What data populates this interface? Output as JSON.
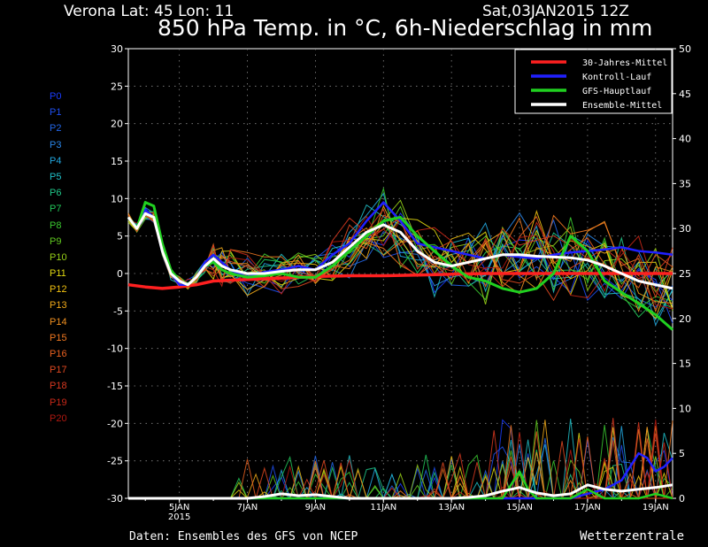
{
  "header": {
    "location": "Verona   Lat: 45 Lon: 11",
    "run": "Sat,03JAN2015 12Z",
    "title": "850 hPa Temp. in °C, 6h-Niederschlag in mm"
  },
  "footer": {
    "credit": "Daten: Ensembles des GFS von NCEP",
    "brand": "Wetterzentrale"
  },
  "members": [
    {
      "name": "P0",
      "color": "#1a3cff"
    },
    {
      "name": "P1",
      "color": "#1f4ff0"
    },
    {
      "name": "P2",
      "color": "#2266e8"
    },
    {
      "name": "P3",
      "color": "#2a86e8"
    },
    {
      "name": "P4",
      "color": "#22a8e0"
    },
    {
      "name": "P5",
      "color": "#20c0c8"
    },
    {
      "name": "P6",
      "color": "#20c88a"
    },
    {
      "name": "P7",
      "color": "#22c85a"
    },
    {
      "name": "P8",
      "color": "#3ac830"
    },
    {
      "name": "P9",
      "color": "#60c820"
    },
    {
      "name": "P10",
      "color": "#98d018"
    },
    {
      "name": "P11",
      "color": "#e0d810"
    },
    {
      "name": "P12",
      "color": "#f0c010"
    },
    {
      "name": "P13",
      "color": "#f0a818"
    },
    {
      "name": "P14",
      "color": "#f09020"
    },
    {
      "name": "P15",
      "color": "#f07820"
    },
    {
      "name": "P16",
      "color": "#e86020"
    },
    {
      "name": "P17",
      "color": "#e04820"
    },
    {
      "name": "P18",
      "color": "#d83820"
    },
    {
      "name": "P19",
      "color": "#c82818"
    },
    {
      "name": "P20",
      "color": "#b01810"
    }
  ],
  "chart_data": {
    "type": "line",
    "title": "850 hPa Temp. in °C, 6h-Niederschlag in mm",
    "x_unit": "date",
    "x_range": [
      "2015-01-03 12Z",
      "2015-01-19 12Z"
    ],
    "x_ticks": [
      {
        "label": "5JAN",
        "sublabel": "2015",
        "day": 5
      },
      {
        "label": "7JAN",
        "day": 7
      },
      {
        "label": "9JAN",
        "day": 9
      },
      {
        "label": "11JAN",
        "day": 11
      },
      {
        "label": "13JAN",
        "day": 13
      },
      {
        "label": "15JAN",
        "day": 15
      },
      {
        "label": "17JAN",
        "day": 17
      },
      {
        "label": "19JAN",
        "day": 19
      }
    ],
    "y_left": {
      "label": "850 hPa Temp. (°C)",
      "range": [
        -30,
        30
      ],
      "ticks": [
        -30,
        -25,
        -20,
        -15,
        -10,
        -5,
        0,
        5,
        10,
        15,
        20,
        25,
        30
      ]
    },
    "y_right": {
      "label": "6h-Niederschlag (mm)",
      "range": [
        0,
        50
      ],
      "ticks": [
        0,
        5,
        10,
        15,
        20,
        25,
        30,
        35,
        40,
        45,
        50
      ]
    },
    "grid": true,
    "legend_position": "top-right",
    "legend": [
      {
        "label": "30-Jahres-Mittel",
        "color": "#ff2020"
      },
      {
        "label": "Kontroll-Lauf",
        "color": "#2020ff"
      },
      {
        "label": "GFS-Hauptlauf",
        "color": "#20d020"
      },
      {
        "label": "Ensemble-Mittel",
        "color": "#ffffff"
      }
    ],
    "temperature_series": [
      {
        "name": "30-Jahres-Mittel",
        "color": "#ff2020",
        "width": 3.5,
        "x": [
          3.5,
          4,
          4.5,
          5,
          5.5,
          6,
          7,
          8,
          9,
          10,
          11,
          12,
          13,
          14,
          15,
          16,
          17,
          18,
          19,
          19.5
        ],
        "y": [
          -1.5,
          -1.8,
          -2.0,
          -1.8,
          -1.5,
          -1.0,
          -0.8,
          -0.6,
          -0.4,
          -0.3,
          -0.3,
          -0.2,
          -0.1,
          0.0,
          0.0,
          0.0,
          0.0,
          0.0,
          0.0,
          0.0
        ]
      },
      {
        "name": "Kontroll-Lauf",
        "color": "#2020ff",
        "width": 2.5,
        "x": [
          3.5,
          3.75,
          4,
          4.25,
          4.5,
          4.75,
          5,
          5.25,
          5.5,
          5.75,
          6,
          6.25,
          6.5,
          7,
          7.5,
          8,
          8.5,
          9,
          9.5,
          10,
          10.5,
          11,
          11.5,
          12,
          12.5,
          13,
          13.5,
          14,
          14.5,
          15,
          15.5,
          16,
          16.5,
          17,
          17.5,
          18,
          18.5,
          19,
          19.5
        ],
        "y": [
          7.5,
          6,
          8.5,
          7.5,
          3,
          0,
          -1.5,
          -1.5,
          -0.5,
          1.5,
          2.5,
          1.5,
          0.5,
          -0.5,
          0.2,
          0.5,
          1,
          0.5,
          2.5,
          4,
          7,
          9.5,
          7,
          4,
          3.5,
          3,
          2.5,
          2,
          2.5,
          2.2,
          2,
          2.5,
          2.8,
          3,
          3.2,
          3.5,
          3,
          2.8,
          2.5
        ]
      },
      {
        "name": "GFS-Hauptlauf",
        "color": "#20d020",
        "width": 3,
        "x": [
          3.5,
          3.75,
          4,
          4.25,
          4.5,
          4.75,
          5,
          5.25,
          5.5,
          5.75,
          6,
          6.25,
          6.5,
          7,
          7.5,
          8,
          8.5,
          9,
          9.5,
          10,
          10.5,
          11,
          11.5,
          12,
          12.5,
          13,
          13.5,
          14,
          14.5,
          15,
          15.5,
          16,
          16.5,
          17,
          17.5,
          18,
          18.5,
          19,
          19.5
        ],
        "y": [
          7.5,
          6,
          9.5,
          9,
          4,
          0.5,
          -1,
          -1.5,
          -0.5,
          1,
          1.5,
          0.5,
          0,
          -0.5,
          -0.3,
          0,
          -0.5,
          -0.5,
          1,
          3,
          5,
          7,
          7.5,
          5,
          3,
          1,
          -0.5,
          -1,
          -2,
          -2.5,
          -2,
          0,
          5,
          3,
          -1,
          -2.5,
          -4,
          -5.5,
          -7.5
        ]
      },
      {
        "name": "Ensemble-Mittel",
        "color": "#ffffff",
        "width": 3,
        "x": [
          3.5,
          3.75,
          4,
          4.25,
          4.5,
          4.75,
          5,
          5.25,
          5.5,
          5.75,
          6,
          6.25,
          6.5,
          7,
          7.5,
          8,
          8.5,
          9,
          9.5,
          10,
          10.5,
          11,
          11.5,
          12,
          12.5,
          13,
          13.5,
          14,
          14.5,
          15,
          15.5,
          16,
          16.5,
          17,
          17.5,
          18,
          18.5,
          19,
          19.5
        ],
        "y": [
          7.5,
          6,
          8,
          7.5,
          3,
          0,
          -1,
          -1.5,
          -0.5,
          1,
          2,
          1,
          0.5,
          0,
          0,
          0.3,
          0.5,
          0.5,
          1.5,
          3.5,
          5.5,
          6.5,
          5.5,
          3,
          1.5,
          1,
          1.5,
          2,
          2.5,
          2.5,
          2.3,
          2.2,
          2.1,
          1.8,
          1,
          0,
          -1,
          -1.5,
          -2
        ]
      }
    ],
    "precipitation_series": [
      {
        "name": "Kontroll-Lauf",
        "color": "#2020ff",
        "width": 2.5,
        "x": [
          3.5,
          7,
          8,
          9,
          10,
          11,
          12,
          13,
          14,
          15,
          16,
          16.5,
          17,
          17.5,
          18,
          18.25,
          18.5,
          18.75,
          19,
          19.25,
          19.5
        ],
        "y": [
          0,
          0,
          0,
          0,
          0,
          0,
          0,
          0,
          0,
          0,
          0,
          0,
          0.5,
          1,
          2,
          3.5,
          5,
          4.5,
          3,
          3.5,
          4.5
        ]
      },
      {
        "name": "GFS-Hauptlauf",
        "color": "#20d020",
        "width": 2.5,
        "x": [
          3.5,
          7,
          8,
          9,
          10,
          11,
          12,
          13,
          14,
          14.5,
          15,
          15.25,
          15.5,
          16,
          16.5,
          17,
          17.5,
          18,
          18.5,
          19,
          19.5
        ],
        "y": [
          0,
          0,
          0,
          0,
          0,
          0,
          0,
          0,
          0,
          0,
          3,
          1,
          0,
          0,
          0,
          1,
          0,
          0,
          0,
          0.5,
          0
        ]
      },
      {
        "name": "Ensemble-Mittel",
        "color": "#ffffff",
        "width": 3,
        "x": [
          3.5,
          7,
          7.5,
          8,
          8.5,
          9,
          9.5,
          10,
          11,
          12,
          13,
          13.5,
          14,
          14.5,
          15,
          15.5,
          16,
          16.5,
          17,
          17.5,
          18,
          18.5,
          19,
          19.5
        ],
        "y": [
          0,
          0,
          0.2,
          0.5,
          0.3,
          0.4,
          0.2,
          0,
          0,
          0,
          0,
          0.1,
          0.3,
          0.8,
          1.2,
          0.6,
          0.3,
          0.5,
          1.5,
          1,
          0.8,
          1,
          1.2,
          1.5
        ]
      }
    ]
  }
}
